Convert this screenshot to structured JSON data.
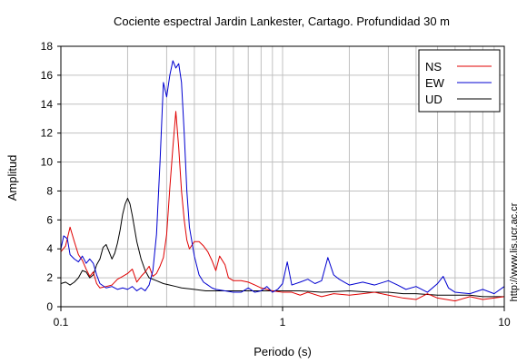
{
  "chart_data": {
    "type": "line",
    "title": "Cociente espectral Jardin Lankester, Cartago. Profundidad 30 m",
    "xlabel": "Periodo (s)",
    "ylabel": "Amplitud",
    "xscale": "log",
    "xlim": [
      0.1,
      10
    ],
    "ylim": [
      0,
      18
    ],
    "yticks": [
      0,
      2,
      4,
      6,
      8,
      10,
      12,
      14,
      16,
      18
    ],
    "xticks": [
      0.1,
      1,
      10
    ],
    "xtick_labels": [
      "0.1",
      "1",
      "10"
    ],
    "grid": true,
    "legend_position": "top-right",
    "watermark": "http://www.lis.ucr.ac.cr",
    "series": [
      {
        "name": "NS",
        "color": "#e00000",
        "points": [
          [
            0.1,
            3.8
          ],
          [
            0.105,
            4.2
          ],
          [
            0.11,
            5.5
          ],
          [
            0.115,
            4.5
          ],
          [
            0.12,
            3.6
          ],
          [
            0.125,
            3.2
          ],
          [
            0.13,
            2.6
          ],
          [
            0.135,
            2.1
          ],
          [
            0.14,
            2.4
          ],
          [
            0.145,
            1.6
          ],
          [
            0.15,
            1.3
          ],
          [
            0.16,
            1.4
          ],
          [
            0.17,
            1.5
          ],
          [
            0.18,
            1.9
          ],
          [
            0.19,
            2.1
          ],
          [
            0.2,
            2.3
          ],
          [
            0.21,
            2.6
          ],
          [
            0.22,
            1.7
          ],
          [
            0.23,
            2.1
          ],
          [
            0.24,
            2.4
          ],
          [
            0.25,
            2.8
          ],
          [
            0.26,
            2.1
          ],
          [
            0.27,
            2.3
          ],
          [
            0.28,
            2.8
          ],
          [
            0.29,
            3.4
          ],
          [
            0.3,
            5.0
          ],
          [
            0.31,
            8.2
          ],
          [
            0.32,
            11.0
          ],
          [
            0.33,
            13.5
          ],
          [
            0.34,
            11.0
          ],
          [
            0.35,
            8.0
          ],
          [
            0.36,
            6.0
          ],
          [
            0.37,
            4.6
          ],
          [
            0.38,
            4.0
          ],
          [
            0.4,
            4.5
          ],
          [
            0.42,
            4.5
          ],
          [
            0.44,
            4.2
          ],
          [
            0.46,
            3.8
          ],
          [
            0.48,
            3.2
          ],
          [
            0.5,
            2.5
          ],
          [
            0.52,
            3.5
          ],
          [
            0.55,
            2.9
          ],
          [
            0.57,
            2.0
          ],
          [
            0.6,
            1.8
          ],
          [
            0.65,
            1.8
          ],
          [
            0.7,
            1.7
          ],
          [
            0.75,
            1.5
          ],
          [
            0.8,
            1.3
          ],
          [
            0.85,
            1.2
          ],
          [
            0.9,
            1.1
          ],
          [
            1.0,
            1.0
          ],
          [
            1.1,
            1.0
          ],
          [
            1.2,
            0.8
          ],
          [
            1.3,
            1.0
          ],
          [
            1.5,
            0.7
          ],
          [
            1.7,
            0.9
          ],
          [
            2.0,
            0.8
          ],
          [
            2.3,
            0.9
          ],
          [
            2.6,
            1.0
          ],
          [
            3.0,
            0.8
          ],
          [
            3.5,
            0.6
          ],
          [
            4.0,
            0.5
          ],
          [
            4.5,
            0.9
          ],
          [
            5.0,
            0.6
          ],
          [
            6.0,
            0.4
          ],
          [
            7.0,
            0.7
          ],
          [
            8.0,
            0.5
          ],
          [
            9.0,
            0.6
          ],
          [
            10.0,
            0.7
          ]
        ]
      },
      {
        "name": "EW",
        "color": "#0000d0",
        "points": [
          [
            0.1,
            4.0
          ],
          [
            0.103,
            4.9
          ],
          [
            0.107,
            4.7
          ],
          [
            0.11,
            3.6
          ],
          [
            0.115,
            3.3
          ],
          [
            0.12,
            3.1
          ],
          [
            0.125,
            3.5
          ],
          [
            0.13,
            3.0
          ],
          [
            0.135,
            3.3
          ],
          [
            0.14,
            3.0
          ],
          [
            0.145,
            2.2
          ],
          [
            0.15,
            1.6
          ],
          [
            0.16,
            1.3
          ],
          [
            0.17,
            1.4
          ],
          [
            0.18,
            1.2
          ],
          [
            0.19,
            1.3
          ],
          [
            0.2,
            1.2
          ],
          [
            0.21,
            1.4
          ],
          [
            0.22,
            1.1
          ],
          [
            0.23,
            1.3
          ],
          [
            0.24,
            1.1
          ],
          [
            0.25,
            1.5
          ],
          [
            0.26,
            2.5
          ],
          [
            0.27,
            5.0
          ],
          [
            0.28,
            10.0
          ],
          [
            0.29,
            15.5
          ],
          [
            0.3,
            14.5
          ],
          [
            0.31,
            16.0
          ],
          [
            0.32,
            17.0
          ],
          [
            0.33,
            16.5
          ],
          [
            0.34,
            16.8
          ],
          [
            0.35,
            15.5
          ],
          [
            0.36,
            12.0
          ],
          [
            0.37,
            8.0
          ],
          [
            0.38,
            5.5
          ],
          [
            0.4,
            3.5
          ],
          [
            0.42,
            2.2
          ],
          [
            0.44,
            1.7
          ],
          [
            0.46,
            1.5
          ],
          [
            0.48,
            1.3
          ],
          [
            0.5,
            1.2
          ],
          [
            0.55,
            1.1
          ],
          [
            0.6,
            1.0
          ],
          [
            0.65,
            1.0
          ],
          [
            0.7,
            1.3
          ],
          [
            0.75,
            1.0
          ],
          [
            0.8,
            1.1
          ],
          [
            0.85,
            1.4
          ],
          [
            0.9,
            1.0
          ],
          [
            0.95,
            1.2
          ],
          [
            1.0,
            1.6
          ],
          [
            1.05,
            3.1
          ],
          [
            1.1,
            1.5
          ],
          [
            1.2,
            1.7
          ],
          [
            1.3,
            1.9
          ],
          [
            1.4,
            1.6
          ],
          [
            1.5,
            1.8
          ],
          [
            1.6,
            3.4
          ],
          [
            1.7,
            2.2
          ],
          [
            1.8,
            1.9
          ],
          [
            2.0,
            1.5
          ],
          [
            2.3,
            1.7
          ],
          [
            2.6,
            1.5
          ],
          [
            3.0,
            1.8
          ],
          [
            3.3,
            1.5
          ],
          [
            3.6,
            1.2
          ],
          [
            4.0,
            1.4
          ],
          [
            4.5,
            1.0
          ],
          [
            5.0,
            1.6
          ],
          [
            5.3,
            2.1
          ],
          [
            5.6,
            1.3
          ],
          [
            6.0,
            1.0
          ],
          [
            7.0,
            0.9
          ],
          [
            8.0,
            1.2
          ],
          [
            9.0,
            0.9
          ],
          [
            10.0,
            1.4
          ]
        ]
      },
      {
        "name": "UD",
        "color": "#000000",
        "points": [
          [
            0.1,
            1.6
          ],
          [
            0.105,
            1.7
          ],
          [
            0.11,
            1.5
          ],
          [
            0.115,
            1.7
          ],
          [
            0.12,
            2.0
          ],
          [
            0.125,
            2.5
          ],
          [
            0.13,
            2.4
          ],
          [
            0.135,
            2.0
          ],
          [
            0.14,
            2.2
          ],
          [
            0.145,
            2.9
          ],
          [
            0.15,
            3.3
          ],
          [
            0.155,
            4.1
          ],
          [
            0.16,
            4.3
          ],
          [
            0.165,
            3.8
          ],
          [
            0.17,
            3.3
          ],
          [
            0.175,
            3.7
          ],
          [
            0.18,
            4.4
          ],
          [
            0.185,
            5.3
          ],
          [
            0.19,
            6.4
          ],
          [
            0.195,
            7.1
          ],
          [
            0.2,
            7.5
          ],
          [
            0.205,
            7.1
          ],
          [
            0.21,
            6.3
          ],
          [
            0.22,
            4.5
          ],
          [
            0.23,
            3.3
          ],
          [
            0.24,
            2.5
          ],
          [
            0.25,
            2.0
          ],
          [
            0.27,
            1.8
          ],
          [
            0.29,
            1.6
          ],
          [
            0.31,
            1.5
          ],
          [
            0.33,
            1.4
          ],
          [
            0.35,
            1.3
          ],
          [
            0.4,
            1.2
          ],
          [
            0.45,
            1.1
          ],
          [
            0.5,
            1.1
          ],
          [
            0.6,
            1.1
          ],
          [
            0.7,
            1.1
          ],
          [
            0.8,
            1.1
          ],
          [
            0.9,
            1.1
          ],
          [
            1.0,
            1.1
          ],
          [
            1.2,
            1.1
          ],
          [
            1.5,
            1.0
          ],
          [
            2.0,
            1.1
          ],
          [
            2.5,
            1.0
          ],
          [
            3.0,
            1.0
          ],
          [
            3.5,
            0.9
          ],
          [
            4.0,
            0.9
          ],
          [
            5.0,
            0.8
          ],
          [
            6.0,
            0.8
          ],
          [
            7.0,
            0.8
          ],
          [
            8.0,
            0.7
          ],
          [
            9.0,
            0.7
          ],
          [
            10.0,
            0.7
          ]
        ]
      }
    ]
  }
}
